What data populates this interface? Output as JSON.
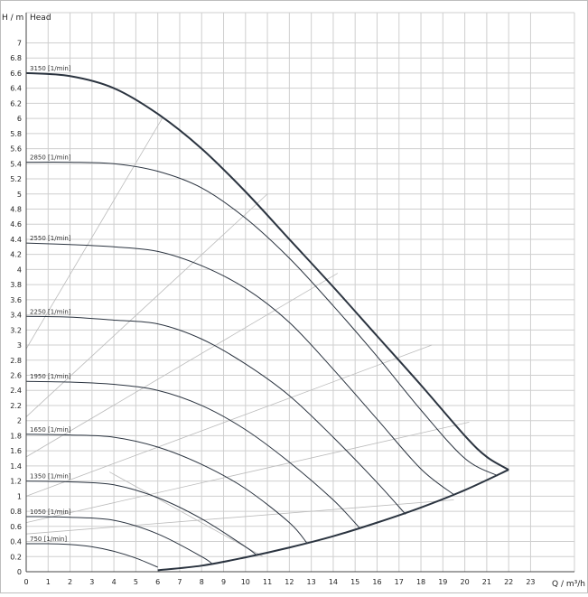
{
  "chart_data": {
    "type": "line",
    "title": "",
    "xlabel": "Q / m³/h",
    "ylabel": "H / m",
    "curve_label": "Head",
    "xlim": [
      0,
      25
    ],
    "ylim": [
      0,
      7.4
    ],
    "x_ticks": [
      "0",
      "1",
      "2",
      "3",
      "4",
      "5",
      "6",
      "7",
      "8",
      "9",
      "10",
      "11",
      "12",
      "13",
      "14",
      "15",
      "16",
      "17",
      "18",
      "19",
      "20",
      "21",
      "22",
      "23"
    ],
    "y_ticks": [
      "0",
      "0.2",
      "0.4",
      "0.6",
      "0.8",
      "1",
      "1.2",
      "1.4",
      "1.6",
      "1.8",
      "2",
      "2.2",
      "2.4",
      "2.6",
      "2.8",
      "3",
      "3.2",
      "3.4",
      "3.6",
      "3.8",
      "4",
      "4.2",
      "4.4",
      "4.6",
      "4.8",
      "5",
      "5.2",
      "5.4",
      "5.6",
      "5.8",
      "6",
      "6.2",
      "6.4",
      "6.6",
      "6.8",
      "7"
    ],
    "grid": true,
    "series": [
      {
        "name": "3150 [1/min]",
        "role": "speed",
        "x": [
          0,
          2,
          4,
          6,
          8,
          10,
          12,
          14,
          16,
          18,
          20,
          21,
          22
        ],
        "y": [
          6.6,
          6.56,
          6.4,
          6.06,
          5.6,
          5.03,
          4.4,
          3.77,
          3.12,
          2.47,
          1.8,
          1.52,
          1.35
        ]
      },
      {
        "name": "2850 [1/min]",
        "x": [
          0,
          2,
          4,
          6,
          8,
          10,
          12,
          14,
          16,
          18,
          20,
          21.5
        ],
        "y": [
          5.42,
          5.42,
          5.4,
          5.3,
          5.08,
          4.68,
          4.15,
          3.52,
          2.85,
          2.14,
          1.5,
          1.27
        ]
      },
      {
        "name": "2550 [1/min]",
        "x": [
          0,
          2,
          4,
          6,
          8,
          10,
          12,
          14,
          16,
          18,
          19.5
        ],
        "y": [
          4.35,
          4.33,
          4.3,
          4.24,
          4.05,
          3.75,
          3.3,
          2.68,
          2.02,
          1.36,
          1.02
        ]
      },
      {
        "name": "2250 [1/min]",
        "x": [
          0,
          2,
          4,
          6,
          8,
          10,
          12,
          14,
          16,
          17.3
        ],
        "y": [
          3.38,
          3.37,
          3.33,
          3.28,
          3.08,
          2.75,
          2.33,
          1.78,
          1.18,
          0.76
        ]
      },
      {
        "name": "1950 [1/min]",
        "x": [
          0,
          2,
          4,
          6,
          8,
          10,
          12,
          14,
          15.2
        ],
        "y": [
          2.52,
          2.51,
          2.48,
          2.4,
          2.2,
          1.88,
          1.45,
          0.95,
          0.58
        ]
      },
      {
        "name": "1650 [1/min]",
        "x": [
          0,
          2,
          4,
          6,
          8,
          10,
          12,
          12.8
        ],
        "y": [
          1.82,
          1.81,
          1.78,
          1.65,
          1.42,
          1.1,
          0.65,
          0.38
        ]
      },
      {
        "name": "1350 [1/min]",
        "x": [
          0,
          2,
          4,
          6,
          8,
          10,
          10.5
        ],
        "y": [
          1.2,
          1.19,
          1.15,
          0.98,
          0.7,
          0.33,
          0.22
        ]
      },
      {
        "name": "1050 [1/min]",
        "x": [
          0,
          2,
          4,
          6,
          8,
          8.5
        ],
        "y": [
          0.73,
          0.72,
          0.68,
          0.5,
          0.2,
          0.1
        ]
      },
      {
        "name": "750 [1/min]",
        "x": [
          0,
          1,
          2,
          3,
          4,
          5,
          6
        ],
        "y": [
          0.37,
          0.37,
          0.36,
          0.33,
          0.27,
          0.18,
          0.06
        ]
      },
      {
        "name": "",
        "role": "limit",
        "x": [
          6,
          8,
          10,
          12,
          14,
          16,
          18,
          20,
          22
        ],
        "y": [
          0.02,
          0.08,
          0.19,
          0.32,
          0.47,
          0.65,
          0.85,
          1.08,
          1.35
        ]
      }
    ],
    "guide_lines": [
      {
        "x": [
          0,
          6.2
        ],
        "y": [
          2.95,
          6.0
        ]
      },
      {
        "x": [
          0,
          11
        ],
        "y": [
          2.05,
          5.0
        ]
      },
      {
        "x": [
          0,
          14.2
        ],
        "y": [
          1.52,
          3.95
        ]
      },
      {
        "x": [
          0,
          18.5
        ],
        "y": [
          1.0,
          3.0
        ]
      },
      {
        "x": [
          0,
          20.2
        ],
        "y": [
          0.65,
          1.98
        ]
      },
      {
        "x": [
          0,
          19.5
        ],
        "y": [
          0.5,
          0.95
        ]
      },
      {
        "x": [
          3.8,
          10.8
        ],
        "y": [
          1.32,
          0.2
        ]
      }
    ]
  }
}
